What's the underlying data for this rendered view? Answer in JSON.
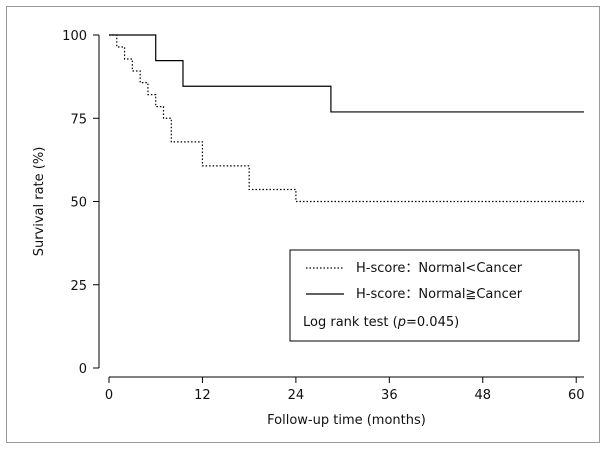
{
  "chart_data": {
    "type": "line",
    "title": "",
    "xlabel": "Follow-up time (months)",
    "ylabel": "Survival rate (%)",
    "xlim": [
      0,
      61
    ],
    "ylim": [
      0,
      100
    ],
    "x_ticks": [
      0,
      12,
      24,
      36,
      48,
      60
    ],
    "y_ticks": [
      0,
      25,
      50,
      75,
      100
    ],
    "x_tick_labels": [
      "0",
      "12",
      "24",
      "36",
      "48",
      "60"
    ],
    "y_tick_labels": [
      "0",
      "25",
      "50",
      "75",
      "100"
    ],
    "grid": false,
    "legend_position": "bottom-right",
    "series": [
      {
        "name": "H-score：Normal<Cancer",
        "line_style": "dotted",
        "step_x": [
          0,
          1,
          2,
          3,
          4,
          5,
          6,
          7,
          8,
          12,
          18,
          24,
          61
        ],
        "step_y": [
          100,
          96.4,
          92.8,
          89.2,
          85.7,
          82.1,
          78.5,
          75,
          67.9,
          60.7,
          53.6,
          50,
          50
        ]
      },
      {
        "name": "H-score：Normal≧Cancer",
        "line_style": "solid",
        "step_x": [
          0,
          6,
          9.5,
          28.5,
          61
        ],
        "step_y": [
          100,
          92.3,
          84.6,
          76.9,
          76.9
        ]
      }
    ],
    "annotation": {
      "prefix": "Log rank test (",
      "p_symbol": "p",
      "suffix": "=0.045)"
    }
  }
}
